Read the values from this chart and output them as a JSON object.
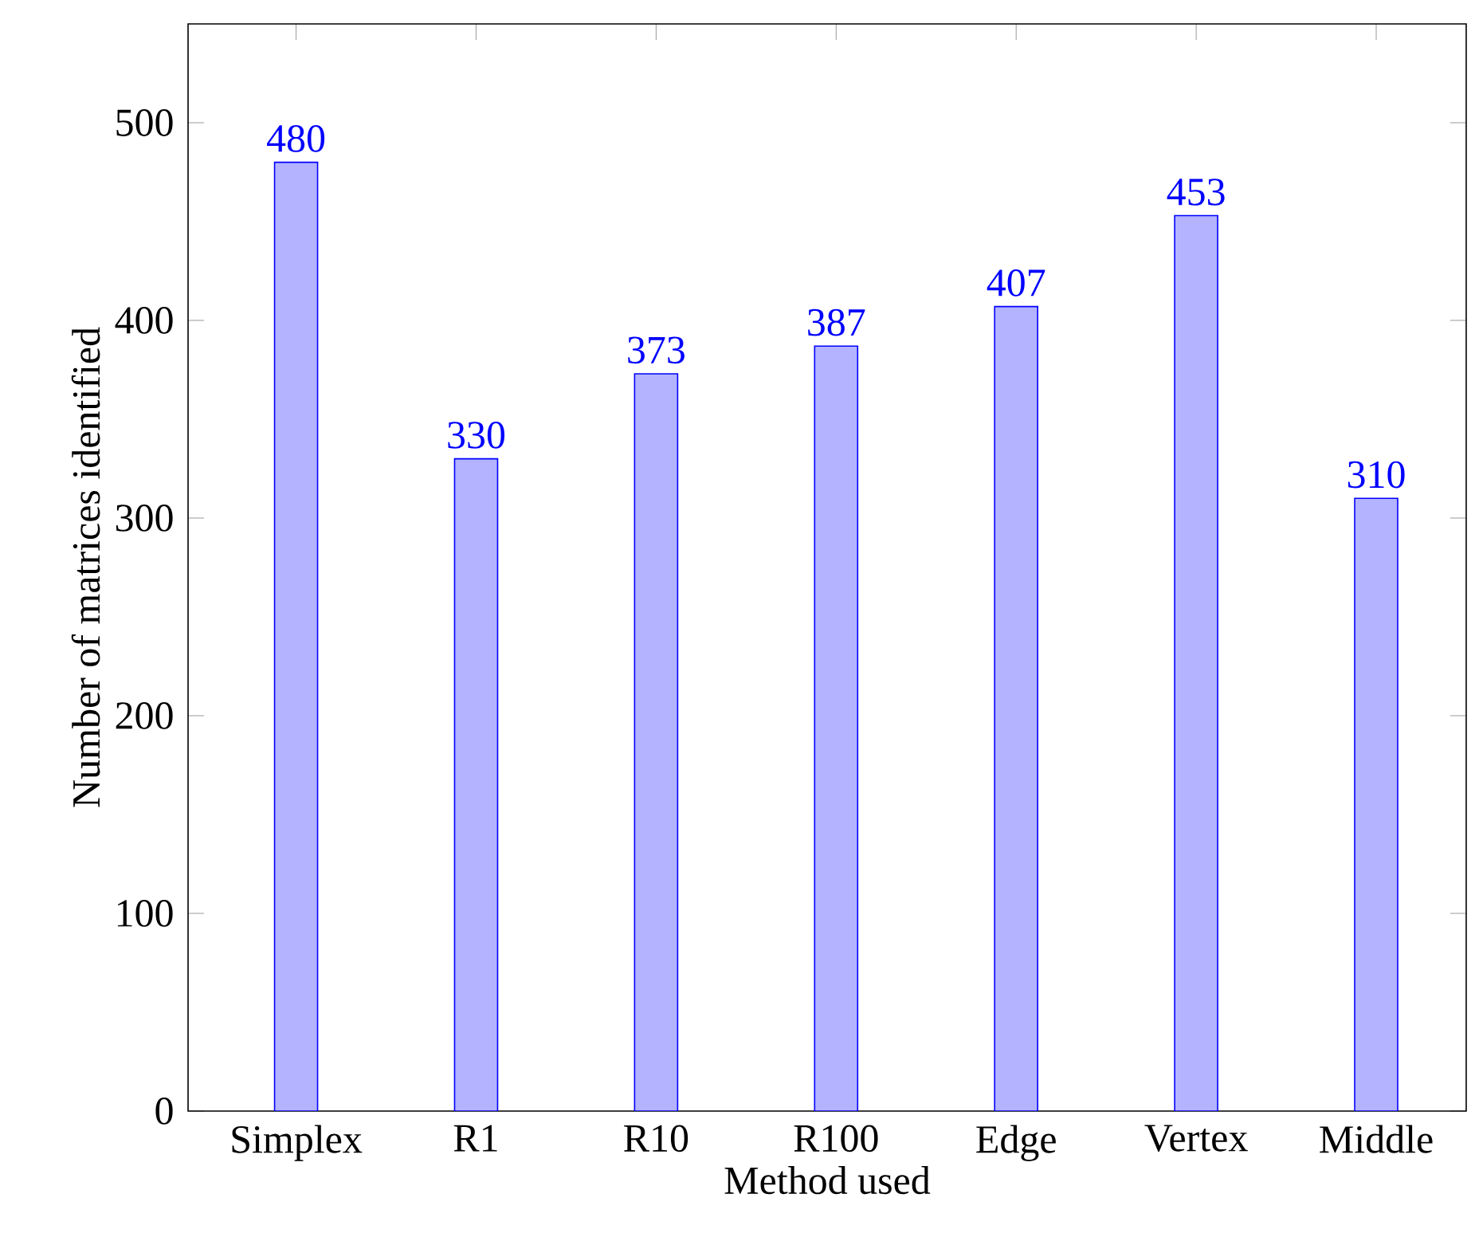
{
  "chart_data": {
    "type": "bar",
    "xlabel": "Method used",
    "ylabel": "Number of matrices identified",
    "categories": [
      "Simplex",
      "R1",
      "R10",
      "R100",
      "Edge",
      "Vertex",
      "Middle"
    ],
    "values": [
      480,
      330,
      373,
      387,
      407,
      453,
      310
    ],
    "color": "#b3b3ff",
    "ylim": [
      0,
      550
    ],
    "yticks": [
      0,
      100,
      200,
      300,
      400,
      500
    ],
    "data_labels": true,
    "grid": false
  }
}
